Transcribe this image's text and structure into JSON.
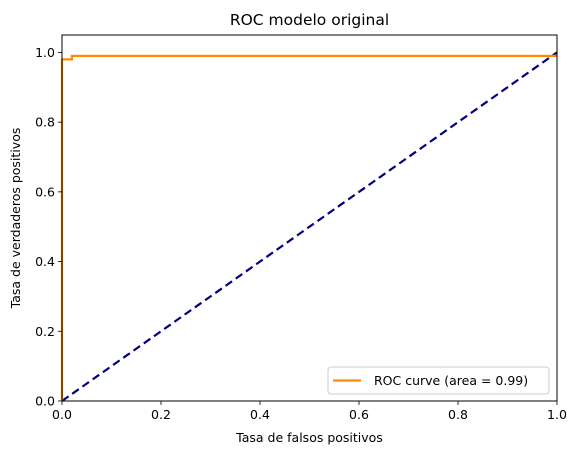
{
  "chart_data": {
    "type": "line",
    "title": "ROC modelo original",
    "xlabel": "Tasa de falsos positivos",
    "ylabel": "Tasa de verdaderos positivos",
    "xlim": [
      0.0,
      1.0
    ],
    "ylim": [
      0.0,
      1.05
    ],
    "x_ticks": [
      "0.0",
      "0.2",
      "0.4",
      "0.6",
      "0.8",
      "1.0"
    ],
    "y_ticks": [
      "0.0",
      "0.2",
      "0.4",
      "0.6",
      "0.8",
      "1.0"
    ],
    "grid": false,
    "legend_position": "lower-right",
    "series": [
      {
        "name": "ROC curve (area = 0.99)",
        "color": "#ff8c00",
        "style": "solid",
        "x": [
          0.0,
          0.0,
          0.0,
          0.01,
          0.01,
          0.02,
          0.02,
          1.0
        ],
        "y": [
          0.0,
          0.875,
          0.98,
          0.98,
          0.98,
          0.98,
          0.99,
          0.99
        ]
      },
      {
        "color": "#000080",
        "style": "dashed",
        "x": [
          0.0,
          1.0
        ],
        "y": [
          0.0,
          1.0
        ]
      }
    ]
  }
}
